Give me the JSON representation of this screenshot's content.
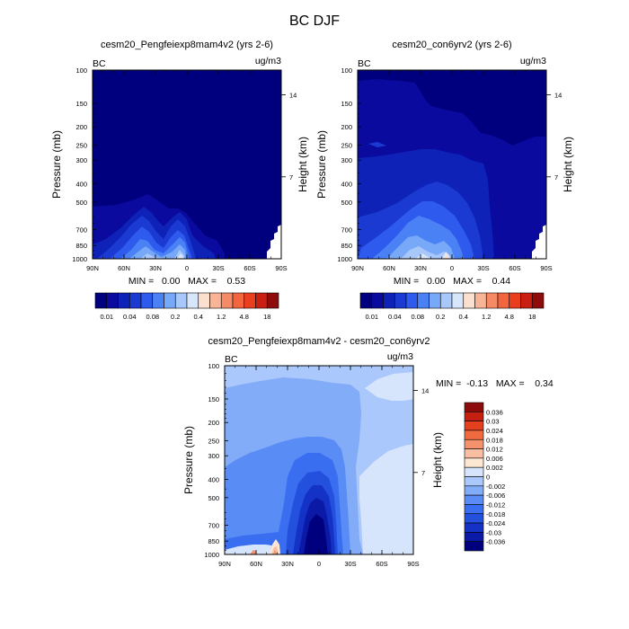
{
  "title": "BC DJF",
  "colors": {
    "abs_scale": [
      "#00007e",
      "#0a0a9e",
      "#0e22b8",
      "#1a3ad2",
      "#2e5aee",
      "#4a82f5",
      "#78a8f8",
      "#a8c8fb",
      "#d8e6fc",
      "#fbe0cf",
      "#f8b496",
      "#f58a66",
      "#f2653e",
      "#ea3f1f",
      "#c81f12",
      "#8e0b0b"
    ],
    "diff_scale": [
      "#00007e",
      "#0a1aa6",
      "#1432c6",
      "#2450de",
      "#3a6ef0",
      "#5a8cf6",
      "#82acf8",
      "#aac8fb",
      "#d6e5fc",
      "#fde6d2",
      "#f9bea2",
      "#f5926e",
      "#f06a40",
      "#e3401f",
      "#c4200f",
      "#8e0b0b"
    ]
  },
  "chart_data": [
    {
      "type": "heatmap",
      "title": "cesm20_Pengfeiexp8mam4v2 (yrs 2-6)",
      "left_label": "BC",
      "unit_label": "ug/m3",
      "xlabel": "",
      "ylabel": "Pressure (mb)",
      "ylabel_right": "Height (km)",
      "x_ticks": [
        "90N",
        "60N",
        "30N",
        "0",
        "30S",
        "60S",
        "90S"
      ],
      "y_ticks": [
        "100",
        "150",
        "200",
        "250",
        "300",
        "400",
        "500",
        "700",
        "850",
        "1000"
      ],
      "y_ticks_right": [
        "14",
        "7"
      ],
      "y_scale": "log",
      "xlim": [
        "90N",
        "90S"
      ],
      "ylim": [
        1000,
        100
      ],
      "stats": "MIN =   0.00   MAX =    0.53",
      "colorbar_labels": [
        "0.01",
        "0.04",
        "0.08",
        "0.2",
        "0.4",
        "1.2",
        "4.8",
        "18"
      ]
    },
    {
      "type": "heatmap",
      "title": "cesm20_con6yrv2 (yrs 2-6)",
      "left_label": "BC",
      "unit_label": "ug/m3",
      "xlabel": "",
      "ylabel": "Pressure (mb)",
      "ylabel_right": "Height (km)",
      "x_ticks": [
        "90N",
        "60N",
        "30N",
        "0",
        "30S",
        "60S",
        "90S"
      ],
      "y_ticks": [
        "100",
        "150",
        "200",
        "250",
        "300",
        "400",
        "500",
        "700",
        "850",
        "1000"
      ],
      "y_ticks_right": [
        "14",
        "7"
      ],
      "y_scale": "log",
      "xlim": [
        "90N",
        "90S"
      ],
      "ylim": [
        1000,
        100
      ],
      "stats": "MIN =   0.00   MAX =    0.44",
      "colorbar_labels": [
        "0.01",
        "0.04",
        "0.08",
        "0.2",
        "0.4",
        "1.2",
        "4.8",
        "18"
      ]
    },
    {
      "type": "heatmap",
      "title": "cesm20_Pengfeiexp8mam4v2 - cesm20_con6yrv2",
      "left_label": "BC",
      "unit_label": "ug/m3",
      "xlabel": "",
      "ylabel": "Pressure (mb)",
      "ylabel_right": "Height (km)",
      "x_ticks": [
        "90N",
        "60N",
        "30N",
        "0",
        "30S",
        "60S",
        "90S"
      ],
      "y_ticks": [
        "100",
        "150",
        "200",
        "250",
        "300",
        "400",
        "500",
        "700",
        "850",
        "1000"
      ],
      "y_ticks_right": [
        "14",
        "7"
      ],
      "y_scale": "log",
      "xlim": [
        "90N",
        "90S"
      ],
      "ylim": [
        1000,
        100
      ],
      "stats": "MIN =  -0.13   MAX =    0.34",
      "colorbar_labels": [
        "0.036",
        "0.03",
        "0.024",
        "0.018",
        "0.012",
        "0.006",
        "0.002",
        "0",
        "-0.002",
        "-0.006",
        "-0.012",
        "-0.018",
        "-0.024",
        "-0.03",
        "-0.036"
      ]
    }
  ]
}
